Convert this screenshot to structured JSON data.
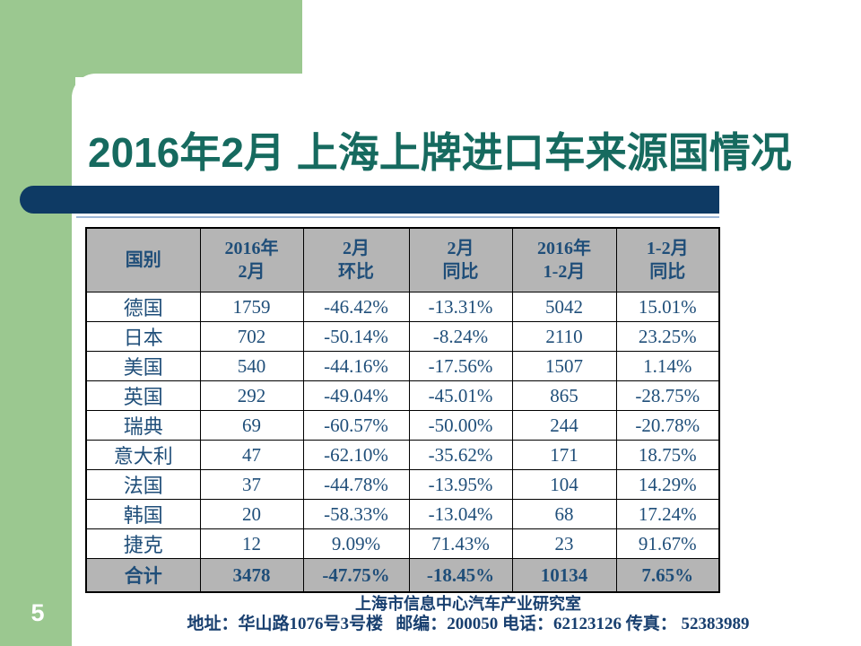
{
  "slide": {
    "title": "2016年2月 上海上牌进口车来源国情况",
    "page_number": "5",
    "colors": {
      "template_green": "#9bc890",
      "title_teal": "#166a5f",
      "bar_navy": "#0e3a64",
      "accent_line_blue": "#9db7d8",
      "table_text_navy": "#1f4e79",
      "table_header_gray": "#b5b5b5",
      "footer_navy": "#183f6f",
      "page_number_white": "#ffffff"
    }
  },
  "table": {
    "columns": [
      {
        "line1": "国别",
        "line2": ""
      },
      {
        "line1": "2016年",
        "line2": "2月"
      },
      {
        "line1": "2月",
        "line2": "环比"
      },
      {
        "line1": "2月",
        "line2": "同比"
      },
      {
        "line1": "2016年",
        "line2": "1-2月"
      },
      {
        "line1": "1-2月",
        "line2": "同比"
      }
    ],
    "rows": [
      [
        "德国",
        "1759",
        "-46.42%",
        "-13.31%",
        "5042",
        "15.01%"
      ],
      [
        "日本",
        "702",
        "-50.14%",
        "-8.24%",
        "2110",
        "23.25%"
      ],
      [
        "美国",
        "540",
        "-44.16%",
        "-17.56%",
        "1507",
        "1.14%"
      ],
      [
        "英国",
        "292",
        "-49.04%",
        "-45.01%",
        "865",
        "-28.75%"
      ],
      [
        "瑞典",
        "69",
        "-60.57%",
        "-50.00%",
        "244",
        "-20.78%"
      ],
      [
        "意大利",
        "47",
        "-62.10%",
        "-35.62%",
        "171",
        "18.75%"
      ],
      [
        "法国",
        "37",
        "-44.78%",
        "-13.95%",
        "104",
        "14.29%"
      ],
      [
        "韩国",
        "20",
        "-58.33%",
        "-13.04%",
        "68",
        "17.24%"
      ],
      [
        "捷克",
        "12",
        "9.09%",
        "71.43%",
        "23",
        "91.67%"
      ]
    ],
    "total": [
      "合计",
      "3478",
      "-47.75%",
      "-18.45%",
      "10134",
      "7.65%"
    ]
  },
  "footer": {
    "line1": "上海市信息中心汽车产业研究室",
    "line2": "地址：华山路1076号3号楼   邮编：200050 电话：62123126 传真： 52383989"
  },
  "chart_data": {
    "type": "table",
    "title": "2016年2月 上海上牌进口车来源国情况",
    "categories": [
      "德国",
      "日本",
      "美国",
      "英国",
      "瑞典",
      "意大利",
      "法国",
      "韩国",
      "捷克",
      "合计"
    ],
    "series": [
      {
        "name": "2016年2月",
        "values": [
          1759,
          702,
          540,
          292,
          69,
          47,
          37,
          20,
          12,
          3478
        ]
      },
      {
        "name": "2月环比",
        "values": [
          "-46.42%",
          "-50.14%",
          "-44.16%",
          "-49.04%",
          "-60.57%",
          "-62.10%",
          "-44.78%",
          "-58.33%",
          "9.09%",
          "-47.75%"
        ]
      },
      {
        "name": "2月同比",
        "values": [
          "-13.31%",
          "-8.24%",
          "-17.56%",
          "-45.01%",
          "-50.00%",
          "-35.62%",
          "-13.95%",
          "-13.04%",
          "71.43%",
          "-18.45%"
        ]
      },
      {
        "name": "2016年1-2月",
        "values": [
          5042,
          2110,
          1507,
          865,
          244,
          171,
          104,
          68,
          23,
          10134
        ]
      },
      {
        "name": "1-2月同比",
        "values": [
          "15.01%",
          "23.25%",
          "1.14%",
          "-28.75%",
          "-20.78%",
          "18.75%",
          "14.29%",
          "17.24%",
          "91.67%",
          "7.65%"
        ]
      }
    ]
  }
}
